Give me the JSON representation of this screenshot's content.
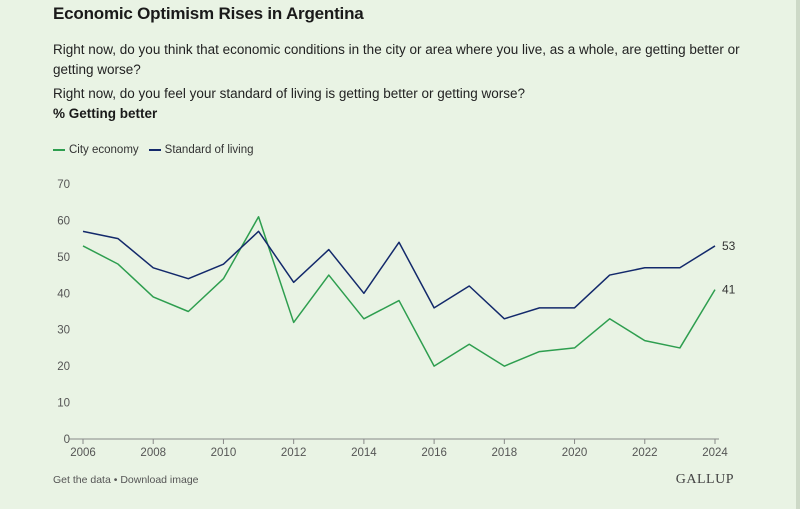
{
  "header": {
    "title": "Economic Optimism Rises in Argentina",
    "question1": "Right now, do you think that economic conditions in the city or area where you live, as a whole, are getting better or getting worse?",
    "question2": "Right now, do you feel your standard of living is getting better or getting worse?",
    "metric": "% Getting better"
  },
  "colors": {
    "city": "#2e9e4f",
    "standard": "#13296b",
    "axis": "#888888",
    "tick_text": "#555555"
  },
  "chart_data": {
    "type": "line",
    "x": [
      2006,
      2007,
      2008,
      2009,
      2010,
      2011,
      2012,
      2013,
      2014,
      2015,
      2016,
      2017,
      2018,
      2019,
      2020,
      2021,
      2022,
      2023,
      2024
    ],
    "series": [
      {
        "name": "City economy",
        "color": "#2e9e4f",
        "values": [
          53,
          48,
          39,
          35,
          44,
          61,
          32,
          45,
          33,
          38,
          20,
          26,
          20,
          24,
          25,
          33,
          27,
          25,
          41
        ],
        "end_label": "41"
      },
      {
        "name": "Standard of living",
        "color": "#13296b",
        "values": [
          57,
          55,
          47,
          44,
          48,
          57,
          43,
          52,
          40,
          54,
          36,
          42,
          33,
          36,
          36,
          45,
          47,
          47,
          53
        ],
        "end_label": "53"
      }
    ],
    "xticks": [
      "2006",
      "2008",
      "2010",
      "2012",
      "2014",
      "2016",
      "2018",
      "2020",
      "2022",
      "2024"
    ],
    "yticks": [
      "0",
      "10",
      "20",
      "30",
      "40",
      "50",
      "60",
      "70"
    ],
    "ylim": [
      0,
      70
    ],
    "xlim": [
      2006,
      2024
    ],
    "legend": "top-left",
    "grid": false
  },
  "footer": {
    "get_data": "Get the data",
    "separator": " • ",
    "download": "Download image",
    "brand": "GALLUP"
  }
}
